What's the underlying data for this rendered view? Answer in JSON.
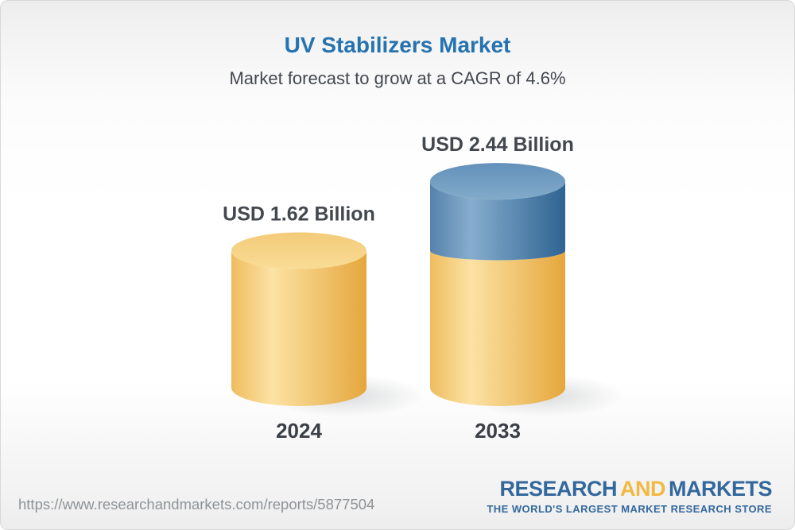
{
  "chart_data": {
    "type": "bar",
    "variant": "3d-stacked-cylinder",
    "title": "UV Stabilizers Market",
    "subtitle": "Market forecast to grow at a CAGR of 4.6%",
    "unit": "USD Billion",
    "cagr_percent": 4.6,
    "categories": [
      "2024",
      "2033"
    ],
    "totals": [
      1.62,
      2.44
    ],
    "value_labels": [
      "USD 1.62 Billion",
      "USD 2.44 Billion"
    ],
    "series": [
      {
        "color_key": "gold",
        "values": [
          1.62,
          1.62
        ]
      },
      {
        "color_key": "blue",
        "values": [
          0,
          0.82
        ]
      }
    ],
    "ylim": [
      0,
      2.44
    ],
    "grid": false,
    "legend": false,
    "axes_visible": false
  },
  "colors": {
    "title_blue": "#2673b0",
    "text_dark": "#43474e",
    "year_label": "#3b3f46",
    "url_gray": "#8f9397",
    "logo_blue": "#33689d",
    "logo_gold": "#f2b843",
    "gold_left": "#efbc5f",
    "gold_mid": "#fce2a4",
    "gold_right": "#e5a73c",
    "gold_top_back": "#f3cb79",
    "gold_top_front": "#f9dc95",
    "blue_left": "#5682ab",
    "blue_mid": "#86adce",
    "blue_right": "#2e6392",
    "blue_top_back": "#6391bb",
    "blue_top_front": "#82aaca"
  },
  "footer": {
    "url": "https://www.researchandmarkets.com/reports/5877504",
    "logo": {
      "part1": "RESEARCH",
      "part2": "AND",
      "part3": "MARKETS"
    },
    "tagline": "THE WORLD'S LARGEST MARKET RESEARCH STORE"
  }
}
